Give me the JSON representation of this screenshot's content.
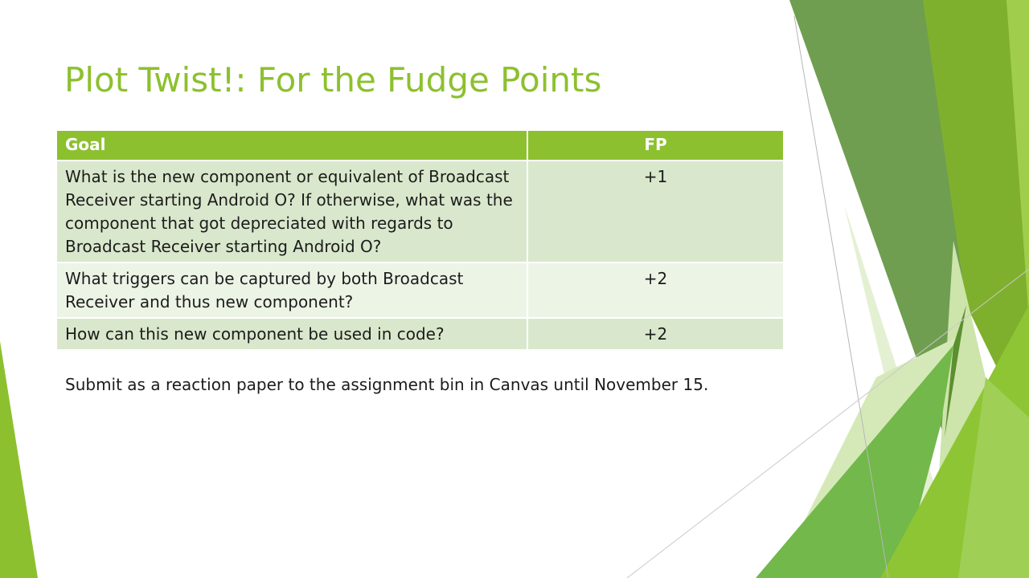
{
  "slide": {
    "title": "Plot Twist!: For the Fudge Points",
    "table": {
      "headers": {
        "goal": "Goal",
        "fp": "FP"
      },
      "rows": [
        {
          "goal": "What is the new component or equivalent of Broadcast Receiver starting Android O? If otherwise, what was the component that got depreciated with regards to Broadcast Receiver starting Android O?",
          "fp": "+1"
        },
        {
          "goal": "What triggers can be captured by both Broadcast Receiver and thus new component?",
          "fp": "+2"
        },
        {
          "goal": "How can this new component be used in code?",
          "fp": "+2"
        }
      ]
    },
    "note": "Submit as a reaction paper to the assignment bin in Canvas until November 15."
  },
  "theme": {
    "accent": "#8dc02f",
    "row_band_dark": "#d9e8cc",
    "row_band_light": "#ecf4e6",
    "text": "#1c1c1c"
  }
}
